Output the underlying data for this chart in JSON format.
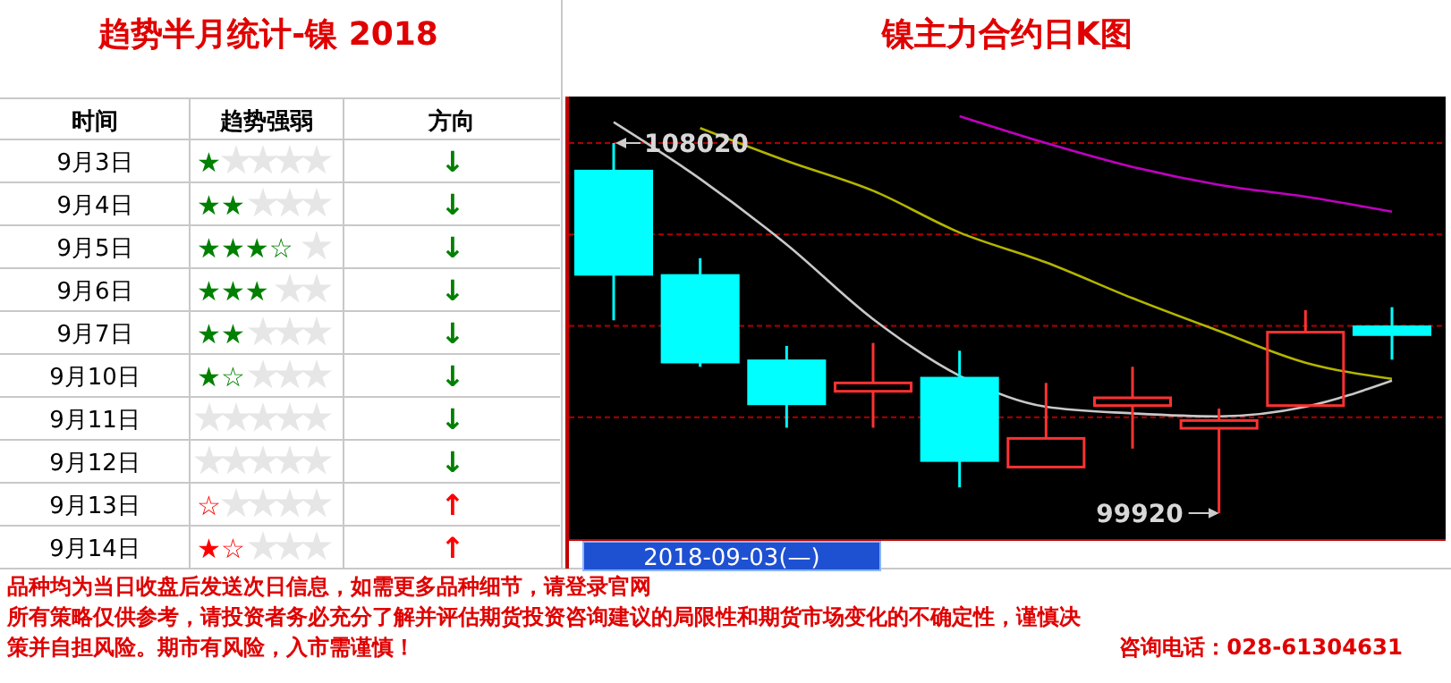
{
  "chart_data": [
    {
      "type": "other",
      "title": "趋势半月统计-镍 2018",
      "categories": [
        "9月3日",
        "9月4日",
        "9月5日",
        "9月6日",
        "9月7日",
        "9月10日",
        "9月11日",
        "9月12日",
        "9月13日",
        "9月14日"
      ],
      "value_labels": [
        "★",
        "★★",
        "★★★☆",
        "★★★",
        "★★",
        "★☆",
        null,
        null,
        "☆",
        "★☆"
      ],
      "colors": [
        "#008000",
        "#008000",
        "#008000",
        "#008000",
        "#008000",
        "#008000",
        "#008000",
        "#008000",
        "#ff0000",
        "#ff0000"
      ],
      "annotations": [
        "时间",
        "趋势强弱",
        "方向",
        "↓",
        "↓",
        "↓",
        "↓",
        "↓",
        "↓",
        "↓",
        "↓",
        "↑",
        "↑"
      ]
    },
    {
      "type": "candlestick",
      "title": "镍主力合约日K图",
      "categories": [
        null,
        null,
        null,
        null,
        null,
        null,
        null,
        null,
        null,
        null
      ],
      "ohlc": [
        [
          107406,
          108020,
          104141,
          105147
        ],
        [
          105121,
          105500,
          103123,
          103227
        ],
        [
          103253,
          103580,
          101790,
          102313
        ],
        [
          102587,
          103645,
          101790,
          102770
        ],
        [
          102874,
          103475,
          100484,
          101072
        ],
        [
          100929,
          102770,
          100902,
          101556
        ],
        [
          102274,
          103123,
          101333,
          102444
        ],
        [
          101777,
          102208,
          99920,
          101947
        ],
        [
          102274,
          104363,
          102274,
          103880
        ],
        [
          103998,
          104428,
          103279,
          103828
        ]
      ],
      "series": [
        {
          "type": "line",
          "color": "#c8c8c8",
          "values": [
            108477,
            107236,
            105800,
            104167,
            102927,
            102248,
            102104,
            102039,
            102248,
            102822
          ]
        },
        {
          "type": "line",
          "color": "#b4b400",
          "values": [
            null,
            108347,
            107628,
            106975,
            106061,
            105408,
            104624,
            103906,
            103214,
            102861
          ]
        },
        {
          "type": "line",
          "color": "#c000c0",
          "values": [
            null,
            null,
            null,
            null,
            108608,
            108020,
            107498,
            107106,
            106845,
            106518
          ]
        }
      ],
      "grid": true,
      "yticks": [
        {
          "value": 108020,
          "label": null
        },
        {
          "value": 106020,
          "label": null
        },
        {
          "value": 104020,
          "label": null
        },
        {
          "value": 102020,
          "label": null
        }
      ],
      "annotations": [
        "108020",
        "99920",
        "2018-09-03(—)",
        "品种均为当日收盘后发送次日信息，如需更多品种细节，请登录官网",
        "所有策略仅供参考，请投资者务必充分了解并评估期货投资咨询建议的局限性和期货市场变化的不确定性，谨慎决",
        "策并自担风险。期市有风险，入市需谨慎！",
        "咨询电话：028-61304631"
      ]
    }
  ]
}
